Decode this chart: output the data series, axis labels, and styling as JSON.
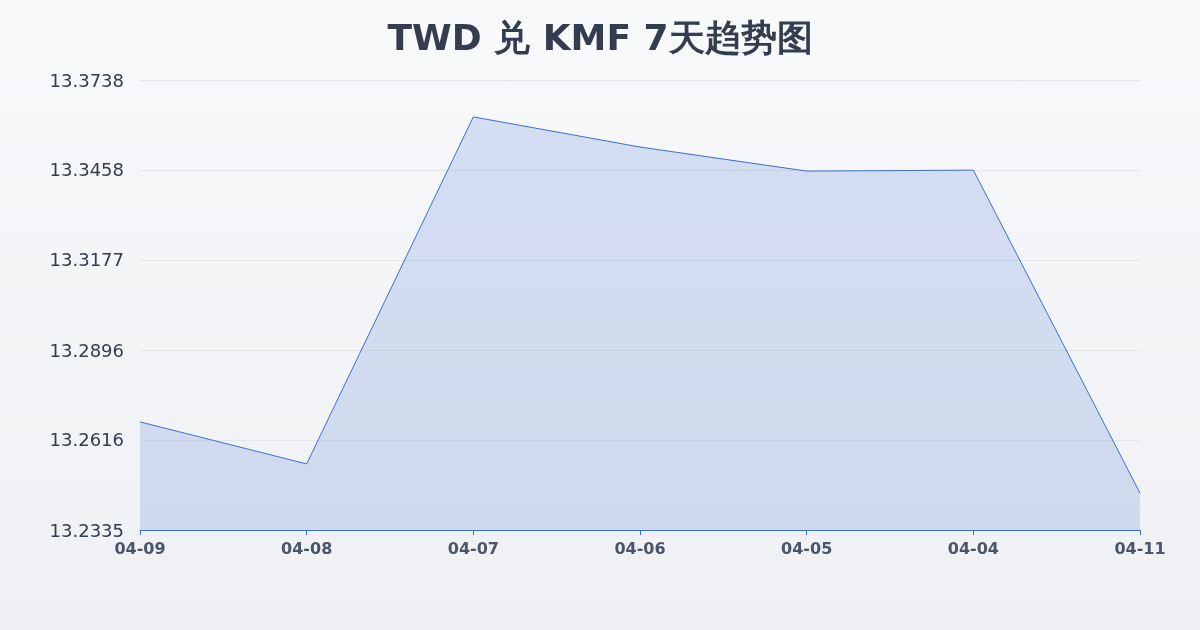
{
  "chart_data": {
    "type": "area",
    "title": "TWD 兑 KMF 7天趋势图",
    "categories": [
      "04-09",
      "04-08",
      "04-07",
      "04-06",
      "04-05",
      "04-04",
      "04-11"
    ],
    "series": [
      {
        "color": "#3b6fd4",
        "values": [
          13.2672,
          13.2541,
          13.3623,
          13.3529,
          13.3454,
          13.3457,
          13.245
        ]
      }
    ],
    "ylim": [
      13.2335,
      13.3738
    ],
    "yticks": [
      13.2335,
      13.2616,
      13.2896,
      13.3177,
      13.3458,
      13.3738
    ],
    "grid": "y",
    "marker": "none",
    "line_style": "solid"
  }
}
